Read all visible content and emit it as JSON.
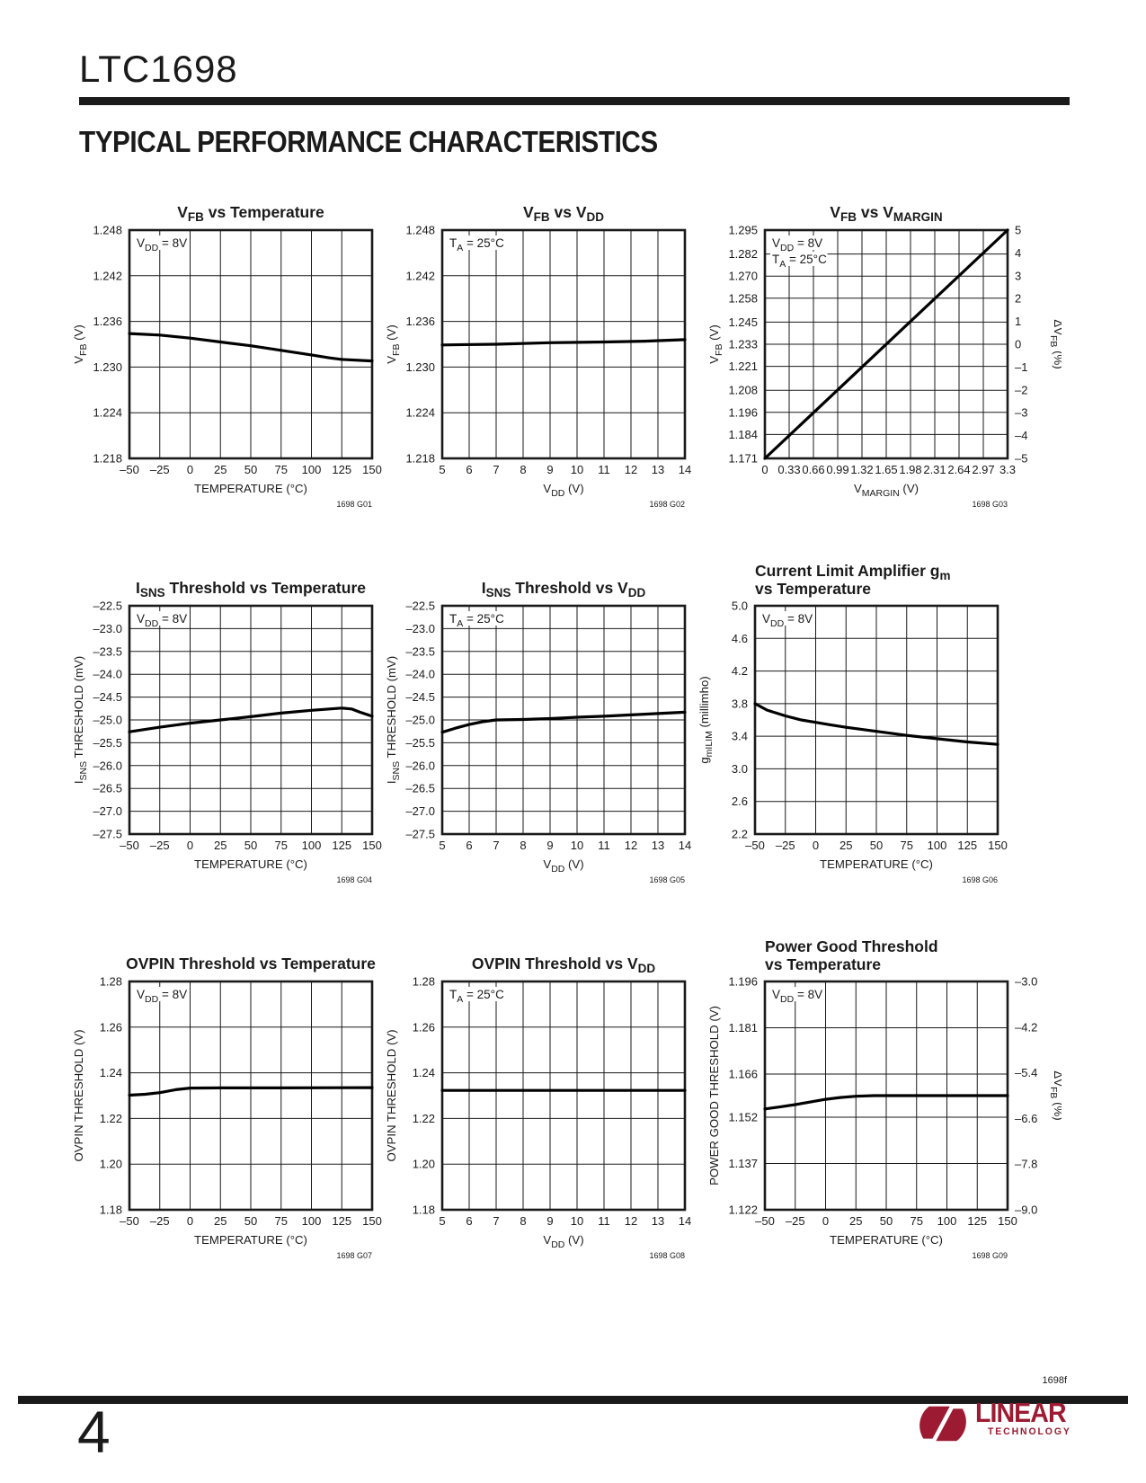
{
  "header": {
    "part": "LTC1698",
    "section_title": "TYPICAL PERFORMANCE CHARACTERISTICS"
  },
  "footer": {
    "doc_code": "1698f",
    "page_number": "4",
    "logo_top": "LINEAR",
    "logo_bottom": "TECHNOLOGY",
    "logo_color": "#9d1b32"
  },
  "chart_data": [
    {
      "id": "G01",
      "type": "line",
      "title_lines": [
        "V~FB~ vs Temperature"
      ],
      "inset": [
        "V~DD~ = 8V"
      ],
      "xlabel": "TEMPERATURE (°C)",
      "ylabel": "V~FB~ (V)",
      "xlim": [
        -50,
        150
      ],
      "ylim": [
        1.218,
        1.248
      ],
      "xticks": [
        [
          -50,
          "–50"
        ],
        [
          -25,
          "–25"
        ],
        [
          0,
          "0"
        ],
        [
          25,
          "25"
        ],
        [
          50,
          "50"
        ],
        [
          75,
          "75"
        ],
        [
          100,
          "100"
        ],
        [
          125,
          "125"
        ],
        [
          150,
          "150"
        ]
      ],
      "yticks": [
        [
          1.218,
          "1.218"
        ],
        [
          1.224,
          "1.224"
        ],
        [
          1.23,
          "1.230"
        ],
        [
          1.236,
          "1.236"
        ],
        [
          1.242,
          "1.242"
        ],
        [
          1.248,
          "1.248"
        ]
      ],
      "series": [
        {
          "name": "VFB",
          "points": [
            [
              -50,
              1.2344
            ],
            [
              -25,
              1.2342
            ],
            [
              0,
              1.2338
            ],
            [
              25,
              1.2333
            ],
            [
              50,
              1.2328
            ],
            [
              75,
              1.2322
            ],
            [
              100,
              1.2316
            ],
            [
              115,
              1.2312
            ],
            [
              125,
              1.231
            ],
            [
              150,
              1.2308
            ]
          ]
        }
      ],
      "footnote": "1698 G01"
    },
    {
      "id": "G02",
      "type": "line",
      "title_lines": [
        "V~FB~ vs V~DD~"
      ],
      "inset": [
        "T~A~ = 25°C"
      ],
      "xlabel": "V~DD~ (V)",
      "ylabel": "V~FB~ (V)",
      "xlim": [
        5,
        14
      ],
      "ylim": [
        1.218,
        1.248
      ],
      "xticks": [
        [
          5,
          "5"
        ],
        [
          6,
          "6"
        ],
        [
          7,
          "7"
        ],
        [
          8,
          "8"
        ],
        [
          9,
          "9"
        ],
        [
          10,
          "10"
        ],
        [
          11,
          "11"
        ],
        [
          12,
          "12"
        ],
        [
          13,
          "13"
        ],
        [
          14,
          "14"
        ]
      ],
      "yticks": [
        [
          1.218,
          "1.218"
        ],
        [
          1.224,
          "1.224"
        ],
        [
          1.23,
          "1.230"
        ],
        [
          1.236,
          "1.236"
        ],
        [
          1.242,
          "1.242"
        ],
        [
          1.248,
          "1.248"
        ]
      ],
      "series": [
        {
          "name": "VFB",
          "points": [
            [
              5,
              1.2329
            ],
            [
              7,
              1.233
            ],
            [
              9,
              1.2332
            ],
            [
              11,
              1.2333
            ],
            [
              12.5,
              1.2334
            ],
            [
              14,
              1.2336
            ]
          ]
        }
      ],
      "footnote": "1698 G02"
    },
    {
      "id": "G03",
      "type": "line",
      "title_lines": [
        "V~FB~ vs V~MARGIN~"
      ],
      "inset": [
        "V~DD~ = 8V",
        "T~A~ = 25°C"
      ],
      "xlabel": "V~MARGIN~ (V)",
      "ylabel": "V~FB~ (V)",
      "y2label": "ΔV~FB~ (%)",
      "xlim": [
        0,
        3.3
      ],
      "ylim": [
        1.171,
        1.295
      ],
      "y2lim": [
        -5,
        5
      ],
      "xticks": [
        [
          0,
          "0"
        ],
        [
          0.33,
          "0.33"
        ],
        [
          0.66,
          "0.66"
        ],
        [
          0.99,
          "0.99"
        ],
        [
          1.32,
          "1.32"
        ],
        [
          1.65,
          "1.65"
        ],
        [
          1.98,
          "1.98"
        ],
        [
          2.31,
          "2.31"
        ],
        [
          2.64,
          "2.64"
        ],
        [
          2.97,
          "2.97"
        ],
        [
          3.3,
          "3.3"
        ]
      ],
      "yticks": [
        [
          1.171,
          "1.171"
        ],
        [
          1.184,
          "1.184"
        ],
        [
          1.196,
          "1.196"
        ],
        [
          1.208,
          "1.208"
        ],
        [
          1.221,
          "1.221"
        ],
        [
          1.233,
          "1.233"
        ],
        [
          1.245,
          "1.245"
        ],
        [
          1.258,
          "1.258"
        ],
        [
          1.27,
          "1.270"
        ],
        [
          1.282,
          "1.282"
        ],
        [
          1.295,
          "1.295"
        ]
      ],
      "y2ticks": [
        [
          -5,
          "–5"
        ],
        [
          -4,
          "–4"
        ],
        [
          -3,
          "–3"
        ],
        [
          -2,
          "–2"
        ],
        [
          -1,
          "–1"
        ],
        [
          0,
          "0"
        ],
        [
          1,
          "1"
        ],
        [
          2,
          "2"
        ],
        [
          3,
          "3"
        ],
        [
          4,
          "4"
        ],
        [
          5,
          "5"
        ]
      ],
      "series": [
        {
          "name": "VFB",
          "points": [
            [
              0,
              1.171
            ],
            [
              3.3,
              1.295
            ]
          ]
        }
      ],
      "footnote": "1698 G03"
    },
    {
      "id": "G04",
      "type": "line",
      "title_lines": [
        "I~SNS~ Threshold vs Temperature"
      ],
      "inset": [
        "V~DD~ = 8V"
      ],
      "xlabel": "TEMPERATURE (°C)",
      "ylabel": "I~SNS~ THRESHOLD (mV)",
      "xlim": [
        -50,
        150
      ],
      "ylim": [
        -27.5,
        -22.5
      ],
      "xticks": [
        [
          -50,
          "–50"
        ],
        [
          -25,
          "–25"
        ],
        [
          0,
          "0"
        ],
        [
          25,
          "25"
        ],
        [
          50,
          "50"
        ],
        [
          75,
          "75"
        ],
        [
          100,
          "100"
        ],
        [
          125,
          "125"
        ],
        [
          150,
          "150"
        ]
      ],
      "yticks": [
        [
          -27.5,
          "–27.5"
        ],
        [
          -27.0,
          "–27.0"
        ],
        [
          -26.5,
          "–26.5"
        ],
        [
          -26.0,
          "–26.0"
        ],
        [
          -25.5,
          "–25.5"
        ],
        [
          -25.0,
          "–25.0"
        ],
        [
          -24.5,
          "–24.5"
        ],
        [
          -24.0,
          "–24.0"
        ],
        [
          -23.5,
          "–23.5"
        ],
        [
          -23.0,
          "–23.0"
        ],
        [
          -22.5,
          "–22.5"
        ]
      ],
      "series": [
        {
          "name": "ISNS threshold",
          "points": [
            [
              -50,
              -25.26
            ],
            [
              -25,
              -25.16
            ],
            [
              0,
              -25.07
            ],
            [
              25,
              -25.0
            ],
            [
              50,
              -24.93
            ],
            [
              75,
              -24.85
            ],
            [
              100,
              -24.79
            ],
            [
              115,
              -24.76
            ],
            [
              125,
              -24.74
            ],
            [
              133,
              -24.76
            ],
            [
              140,
              -24.83
            ],
            [
              150,
              -24.92
            ]
          ]
        }
      ],
      "footnote": "1698 G04"
    },
    {
      "id": "G05",
      "type": "line",
      "title_lines": [
        "I~SNS~ Threshold vs V~DD~"
      ],
      "inset": [
        "T~A~ = 25°C"
      ],
      "xlabel": "V~DD~ (V)",
      "ylabel": "I~SNS~ THRESHOLD (mV)",
      "xlim": [
        5,
        14
      ],
      "ylim": [
        -27.5,
        -22.5
      ],
      "xticks": [
        [
          5,
          "5"
        ],
        [
          6,
          "6"
        ],
        [
          7,
          "7"
        ],
        [
          8,
          "8"
        ],
        [
          9,
          "9"
        ],
        [
          10,
          "10"
        ],
        [
          11,
          "11"
        ],
        [
          12,
          "12"
        ],
        [
          13,
          "13"
        ],
        [
          14,
          "14"
        ]
      ],
      "yticks": [
        [
          -27.5,
          "–27.5"
        ],
        [
          -27.0,
          "–27.0"
        ],
        [
          -26.5,
          "–26.5"
        ],
        [
          -26.0,
          "–26.0"
        ],
        [
          -25.5,
          "–25.5"
        ],
        [
          -25.0,
          "–25.0"
        ],
        [
          -24.5,
          "–24.5"
        ],
        [
          -24.0,
          "–24.0"
        ],
        [
          -23.5,
          "–23.5"
        ],
        [
          -23.0,
          "–23.0"
        ],
        [
          -22.5,
          "–22.5"
        ]
      ],
      "series": [
        {
          "name": "ISNS threshold",
          "points": [
            [
              5,
              -25.27
            ],
            [
              5.5,
              -25.18
            ],
            [
              6,
              -25.1
            ],
            [
              6.5,
              -25.04
            ],
            [
              7,
              -25.0
            ],
            [
              8,
              -24.99
            ],
            [
              9,
              -24.97
            ],
            [
              10,
              -24.94
            ],
            [
              11,
              -24.92
            ],
            [
              12,
              -24.89
            ],
            [
              13,
              -24.86
            ],
            [
              14,
              -24.83
            ]
          ]
        }
      ],
      "footnote": "1698 G05"
    },
    {
      "id": "G06",
      "type": "line",
      "title_lines": [
        "Current Limit Amplifier g~m~",
        "vs Temperature"
      ],
      "inset": [
        "V~DD~ = 8V"
      ],
      "xlabel": "TEMPERATURE (°C)",
      "ylabel": "g~mILIM~ (millimho)",
      "xlim": [
        -50,
        150
      ],
      "ylim": [
        2.2,
        5.0
      ],
      "xticks": [
        [
          -50,
          "–50"
        ],
        [
          -25,
          "–25"
        ],
        [
          0,
          "0"
        ],
        [
          25,
          "25"
        ],
        [
          50,
          "50"
        ],
        [
          75,
          "75"
        ],
        [
          100,
          "100"
        ],
        [
          125,
          "125"
        ],
        [
          150,
          "150"
        ]
      ],
      "yticks": [
        [
          2.2,
          "2.2"
        ],
        [
          2.6,
          "2.6"
        ],
        [
          3.0,
          "3.0"
        ],
        [
          3.4,
          "3.4"
        ],
        [
          3.8,
          "3.8"
        ],
        [
          4.2,
          "4.2"
        ],
        [
          4.6,
          "4.6"
        ],
        [
          5.0,
          "5.0"
        ]
      ],
      "series": [
        {
          "name": "gm ILIM",
          "points": [
            [
              -50,
              3.8
            ],
            [
              -40,
              3.72
            ],
            [
              -25,
              3.65
            ],
            [
              -12,
              3.6
            ],
            [
              0,
              3.57
            ],
            [
              12,
              3.54
            ],
            [
              25,
              3.51
            ],
            [
              50,
              3.46
            ],
            [
              75,
              3.41
            ],
            [
              100,
              3.37
            ],
            [
              125,
              3.33
            ],
            [
              150,
              3.3
            ]
          ]
        }
      ],
      "footnote": "1698 G06"
    },
    {
      "id": "G07",
      "type": "line",
      "title_lines": [
        "OVPIN Threshold vs Temperature"
      ],
      "inset": [
        "V~DD~ = 8V"
      ],
      "xlabel": "TEMPERATURE (°C)",
      "ylabel": "OVPIN THRESHOLD (V)",
      "xlim": [
        -50,
        150
      ],
      "ylim": [
        1.18,
        1.28
      ],
      "xticks": [
        [
          -50,
          "–50"
        ],
        [
          -25,
          "–25"
        ],
        [
          0,
          "0"
        ],
        [
          25,
          "25"
        ],
        [
          50,
          "50"
        ],
        [
          75,
          "75"
        ],
        [
          100,
          "100"
        ],
        [
          125,
          "125"
        ],
        [
          150,
          "150"
        ]
      ],
      "yticks": [
        [
          1.18,
          "1.18"
        ],
        [
          1.2,
          "1.20"
        ],
        [
          1.22,
          "1.22"
        ],
        [
          1.24,
          "1.24"
        ],
        [
          1.26,
          "1.26"
        ],
        [
          1.28,
          "1.28"
        ]
      ],
      "series": [
        {
          "name": "OVPIN threshold",
          "points": [
            [
              -50,
              1.2302
            ],
            [
              -37,
              1.2306
            ],
            [
              -25,
              1.2313
            ],
            [
              -12,
              1.2326
            ],
            [
              0,
              1.2333
            ],
            [
              25,
              1.2334
            ],
            [
              75,
              1.2334
            ],
            [
              150,
              1.2335
            ]
          ]
        }
      ],
      "footnote": "1698 G07"
    },
    {
      "id": "G08",
      "type": "line",
      "title_lines": [
        "OVPIN Threshold vs V~DD~"
      ],
      "inset": [
        "T~A~ = 25°C"
      ],
      "xlabel": "V~DD~ (V)",
      "ylabel": "OVPIN THRESHOLD (V)",
      "xlim": [
        5,
        14
      ],
      "ylim": [
        1.18,
        1.28
      ],
      "xticks": [
        [
          5,
          "5"
        ],
        [
          6,
          "6"
        ],
        [
          7,
          "7"
        ],
        [
          8,
          "8"
        ],
        [
          9,
          "9"
        ],
        [
          10,
          "10"
        ],
        [
          11,
          "11"
        ],
        [
          12,
          "12"
        ],
        [
          13,
          "13"
        ],
        [
          14,
          "14"
        ]
      ],
      "yticks": [
        [
          1.18,
          "1.18"
        ],
        [
          1.2,
          "1.20"
        ],
        [
          1.22,
          "1.22"
        ],
        [
          1.24,
          "1.24"
        ],
        [
          1.26,
          "1.26"
        ],
        [
          1.28,
          "1.28"
        ]
      ],
      "series": [
        {
          "name": "OVPIN threshold",
          "points": [
            [
              5,
              1.2323
            ],
            [
              14,
              1.2323
            ]
          ]
        }
      ],
      "footnote": "1698 G08"
    },
    {
      "id": "G09",
      "type": "line",
      "title_lines": [
        "Power Good Threshold",
        "vs Temperature"
      ],
      "inset": [
        "V~DD~ = 8V"
      ],
      "xlabel": "TEMPERATURE (°C)",
      "ylabel": "POWER GOOD THRESHOLD (V)",
      "y2label": "ΔV~FB~ (%)",
      "xlim": [
        -50,
        150
      ],
      "ylim": [
        1.122,
        1.196
      ],
      "y2lim": [
        -9,
        -3
      ],
      "xticks": [
        [
          -50,
          "–50"
        ],
        [
          -25,
          "–25"
        ],
        [
          0,
          "0"
        ],
        [
          25,
          "25"
        ],
        [
          50,
          "50"
        ],
        [
          75,
          "75"
        ],
        [
          100,
          "100"
        ],
        [
          125,
          "125"
        ],
        [
          150,
          "150"
        ]
      ],
      "yticks": [
        [
          1.122,
          "1.122"
        ],
        [
          1.137,
          "1.137"
        ],
        [
          1.152,
          "1.152"
        ],
        [
          1.166,
          "1.166"
        ],
        [
          1.181,
          "1.181"
        ],
        [
          1.196,
          "1.196"
        ]
      ],
      "y2ticks": [
        [
          -9,
          "–9.0"
        ],
        [
          -7.8,
          "–7.8"
        ],
        [
          -6.6,
          "–6.6"
        ],
        [
          -5.4,
          "–5.4"
        ],
        [
          -4.2,
          "–4.2"
        ],
        [
          -3,
          "–3.0"
        ]
      ],
      "series": [
        {
          "name": "Power good threshold",
          "points": [
            [
              -50,
              1.1547
            ],
            [
              -37,
              1.1554
            ],
            [
              -25,
              1.1561
            ],
            [
              -12,
              1.157
            ],
            [
              0,
              1.1578
            ],
            [
              12,
              1.1584
            ],
            [
              25,
              1.1588
            ],
            [
              40,
              1.159
            ],
            [
              75,
              1.159
            ],
            [
              150,
              1.159
            ]
          ]
        }
      ],
      "footnote": "1698 G09"
    }
  ]
}
